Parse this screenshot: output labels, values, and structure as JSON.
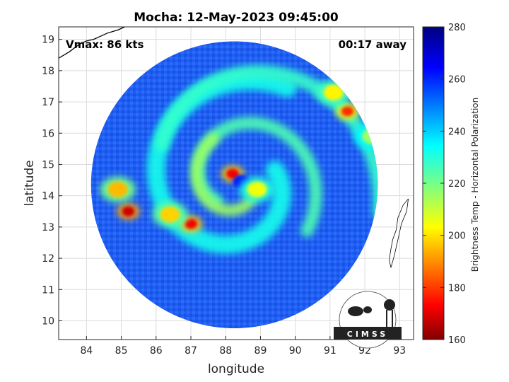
{
  "chart_data": {
    "type": "heatmap",
    "title": "Mocha: 12-May-2023 09:45:00",
    "xlabel": "longitude",
    "ylabel": "latitude",
    "xlim": [
      83.2,
      93.4
    ],
    "ylim": [
      9.4,
      19.4
    ],
    "xticks": [
      84,
      85,
      86,
      87,
      88,
      89,
      90,
      91,
      92,
      93
    ],
    "yticks": [
      10,
      11,
      12,
      13,
      14,
      15,
      16,
      17,
      18,
      19
    ],
    "grid": true,
    "annotations": {
      "vmax": "Vmax: 86 kts",
      "time_offset": "00:17 away"
    },
    "colorbar": {
      "label": "Brightness Temp - Horizontal Polarization",
      "range": [
        160,
        280
      ],
      "ticks": [
        160,
        180,
        200,
        220,
        240,
        260,
        280
      ],
      "colormap": "jet",
      "colors": [
        "#800000",
        "#ff0000",
        "#ffff00",
        "#00ffff",
        "#0000ff",
        "#000080"
      ]
    },
    "swath": {
      "center_lon": 88.25,
      "center_lat": 14.35,
      "radius_deg": 4.5
    },
    "storm_center": {
      "lon": 88.35,
      "lat": 14.45
    },
    "features": [
      {
        "kind": "eyewall",
        "lon": 88.2,
        "lat": 14.7,
        "value": 172
      },
      {
        "kind": "eye",
        "lon": 88.45,
        "lat": 14.45,
        "value": 262
      },
      {
        "kind": "inner_band",
        "lon": 88.9,
        "lat": 14.2,
        "value": 205
      },
      {
        "kind": "rainband_west",
        "lon": 85.2,
        "lat": 13.5,
        "value": 168
      },
      {
        "kind": "rainband_west",
        "lon": 84.9,
        "lat": 14.2,
        "value": 195
      },
      {
        "kind": "rainband_sw",
        "lon": 87.0,
        "lat": 13.1,
        "value": 172
      },
      {
        "kind": "rainband_sw",
        "lon": 86.4,
        "lat": 13.4,
        "value": 198
      },
      {
        "kind": "rainband_ne",
        "lon": 91.5,
        "lat": 16.7,
        "value": 178
      },
      {
        "kind": "rainband_ne",
        "lon": 91.1,
        "lat": 17.3,
        "value": 202
      },
      {
        "kind": "rainband_ne",
        "lon": 92.2,
        "lat": 15.9,
        "value": 215
      }
    ]
  },
  "logo": {
    "text": "CIMSS"
  }
}
